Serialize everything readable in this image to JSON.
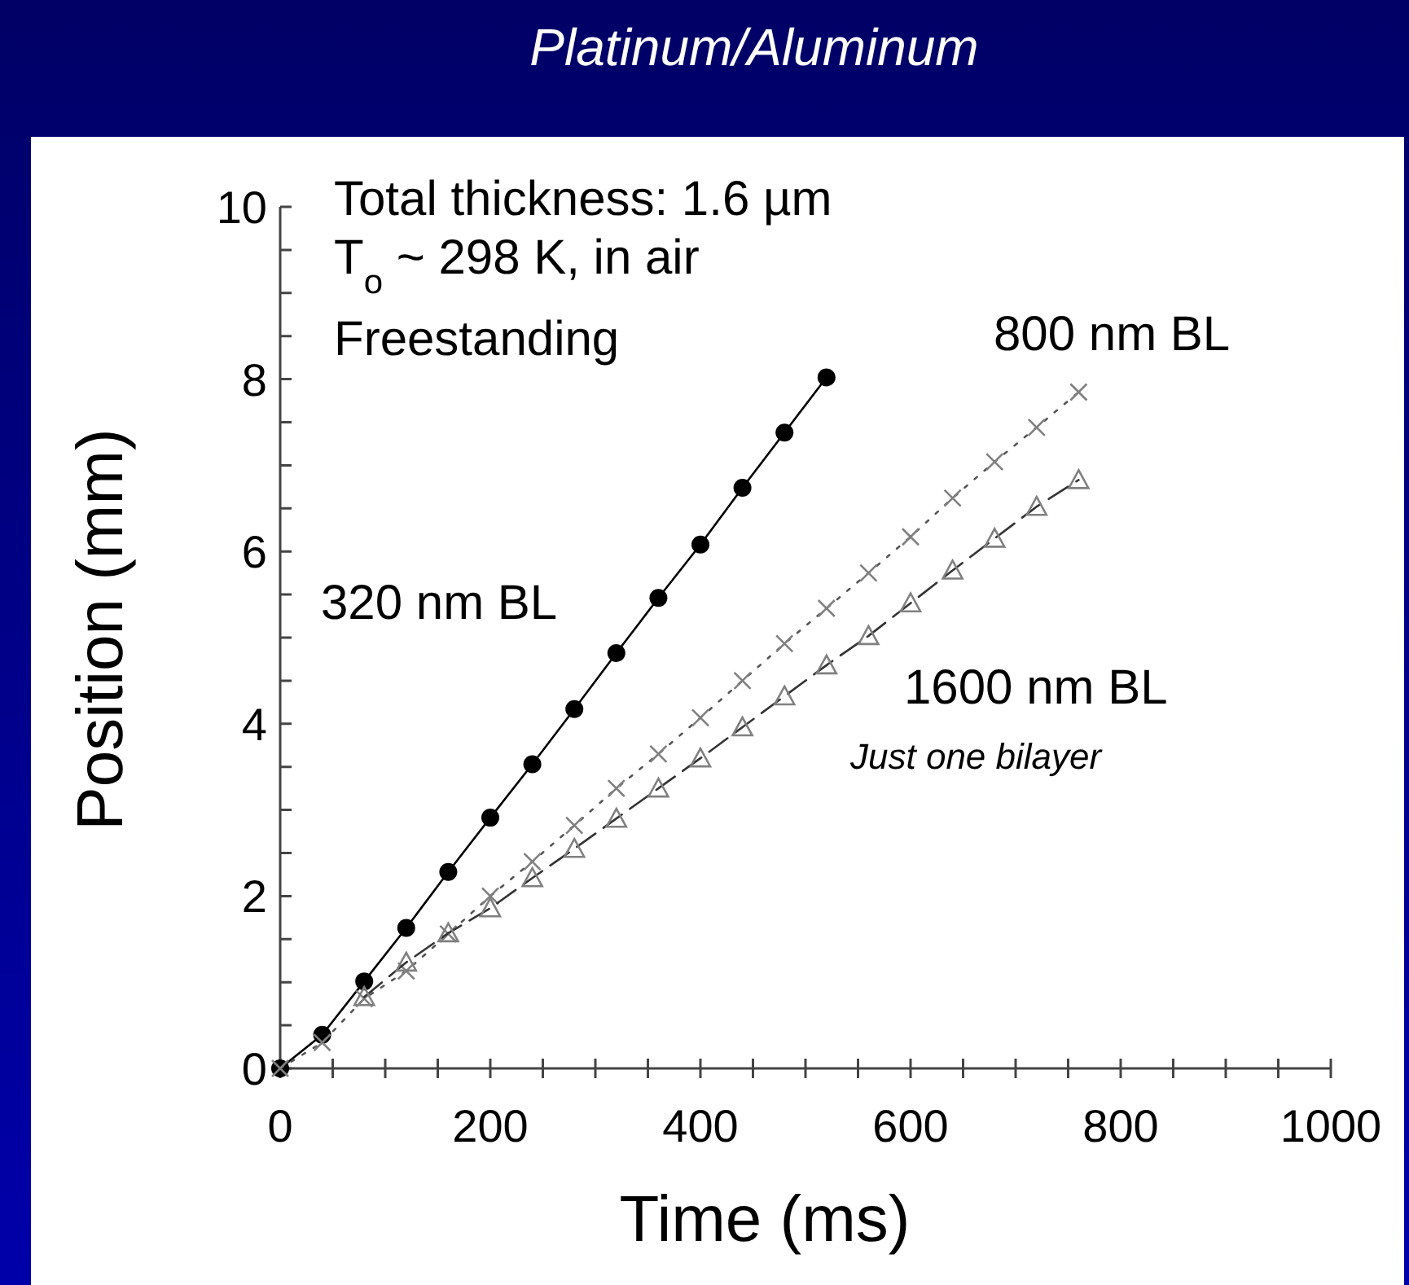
{
  "chart_data": {
    "type": "line",
    "title": "Platinum/Aluminum",
    "xlabel": "Time (ms)",
    "ylabel": "Position (mm)",
    "xlim": [
      0,
      1000
    ],
    "ylim": [
      0,
      10
    ],
    "xticks": [
      0,
      {
        "value": 50,
        "label": null
      },
      {
        "value": 100,
        "label": null
      },
      {
        "value": 150,
        "label": null
      },
      200,
      {
        "value": 250,
        "label": null
      },
      {
        "value": 300,
        "label": null
      },
      {
        "value": 350,
        "label": null
      },
      400,
      {
        "value": 450,
        "label": null
      },
      {
        "value": 500,
        "label": null
      },
      {
        "value": 550,
        "label": null
      },
      600,
      {
        "value": 650,
        "label": null
      },
      {
        "value": 700,
        "label": null
      },
      {
        "value": 750,
        "label": null
      },
      800,
      {
        "value": 850,
        "label": null
      },
      {
        "value": 900,
        "label": null
      },
      {
        "value": 950,
        "label": null
      },
      1000
    ],
    "yticks": [
      0,
      {
        "value": 0.5,
        "label": null
      },
      {
        "value": 1,
        "label": null
      },
      {
        "value": 1.5,
        "label": null
      },
      2,
      {
        "value": 2.5,
        "label": null
      },
      {
        "value": 3,
        "label": null
      },
      {
        "value": 3.5,
        "label": null
      },
      4,
      {
        "value": 4.5,
        "label": null
      },
      {
        "value": 5,
        "label": null
      },
      {
        "value": 5.5,
        "label": null
      },
      6,
      {
        "value": 6.5,
        "label": null
      },
      {
        "value": 7,
        "label": null
      },
      {
        "value": 7.5,
        "label": null
      },
      8,
      {
        "value": 8.5,
        "label": null
      },
      {
        "value": 9,
        "label": null
      },
      {
        "value": 9.5,
        "label": null
      },
      10
    ],
    "grid": false,
    "series": [
      {
        "name": "320 nm BL",
        "color": "#000000",
        "marker": "circle",
        "line_style": "solid",
        "x": [
          0,
          40,
          80,
          120,
          160,
          200,
          240,
          280,
          320,
          360,
          400,
          440,
          480,
          520
        ],
        "values": [
          0,
          0.39,
          1.01,
          1.63,
          2.28,
          2.91,
          3.53,
          4.17,
          4.82,
          5.46,
          6.08,
          6.74,
          7.38,
          8.02
        ]
      },
      {
        "name": "800 nm BL",
        "color": "#808080",
        "marker": "cross",
        "line_style": "dotted",
        "x": [
          0,
          40,
          80,
          120,
          160,
          200,
          240,
          280,
          320,
          360,
          400,
          440,
          480,
          520,
          560,
          600,
          640,
          680,
          720,
          760
        ],
        "values": [
          0,
          0.3,
          0.81,
          1.13,
          1.56,
          2.0,
          2.4,
          2.82,
          3.25,
          3.65,
          4.07,
          4.5,
          4.93,
          5.34,
          5.75,
          6.17,
          6.62,
          7.04,
          7.44,
          7.85
        ]
      },
      {
        "name": "1600 nm BL",
        "color": "#808080",
        "marker": "triangle",
        "line_style": "dashed",
        "x": [
          80,
          120,
          160,
          200,
          240,
          280,
          320,
          360,
          400,
          440,
          480,
          520,
          560,
          600,
          640,
          680,
          720,
          760
        ],
        "values": [
          0.83,
          1.23,
          1.57,
          1.86,
          2.21,
          2.55,
          2.9,
          3.25,
          3.6,
          3.96,
          4.32,
          4.68,
          5.02,
          5.4,
          5.78,
          6.15,
          6.52,
          6.83
        ]
      }
    ],
    "annotations": [
      "Total thickness: 1.6 µm",
      "T$_{o}$ ~ 298 K, in air",
      "Freestanding",
      "Just one bilayer"
    ]
  }
}
